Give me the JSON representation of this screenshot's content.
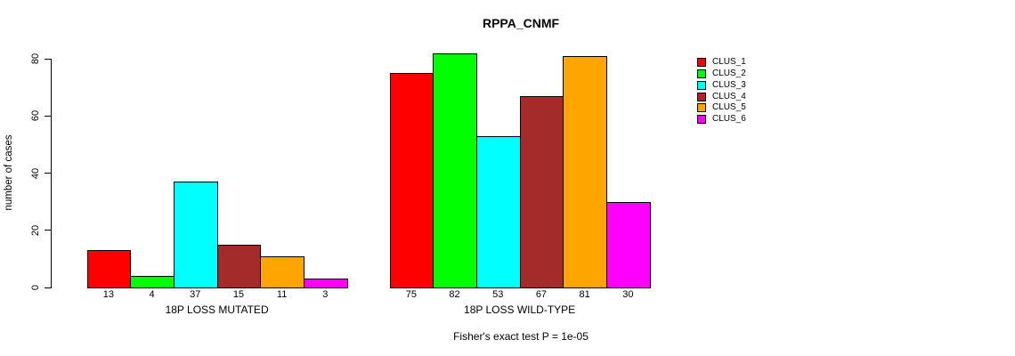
{
  "chart_data": {
    "type": "bar",
    "title": "RPPA_CNMF",
    "ylabel": "number of cases",
    "ylim": [
      0,
      82
    ],
    "yticks": [
      0,
      20,
      40,
      60,
      80
    ],
    "grid": false,
    "legend_position": "right-outside",
    "series_colors": [
      "#FF0000",
      "#00FF00",
      "#00FFFF",
      "#A52A2A",
      "#FFA500",
      "#FF00FF"
    ],
    "groups": [
      {
        "label": "18P LOSS MUTATED",
        "values": [
          13,
          4,
          37,
          15,
          11,
          3
        ]
      },
      {
        "label": "18P LOSS WILD-TYPE",
        "values": [
          75,
          82,
          53,
          67,
          81,
          30
        ]
      }
    ],
    "legend": [
      {
        "label": "CLUS_1",
        "color": "#FF0000"
      },
      {
        "label": "CLUS_2",
        "color": "#00FF00"
      },
      {
        "label": "CLUS_3",
        "color": "#00FFFF"
      },
      {
        "label": "CLUS_4",
        "color": "#A52A2A"
      },
      {
        "label": "CLUS_5",
        "color": "#FFA500"
      },
      {
        "label": "CLUS_6",
        "color": "#FF00FF"
      }
    ],
    "annotation": "Fisher's exact test P = 1e-05"
  }
}
